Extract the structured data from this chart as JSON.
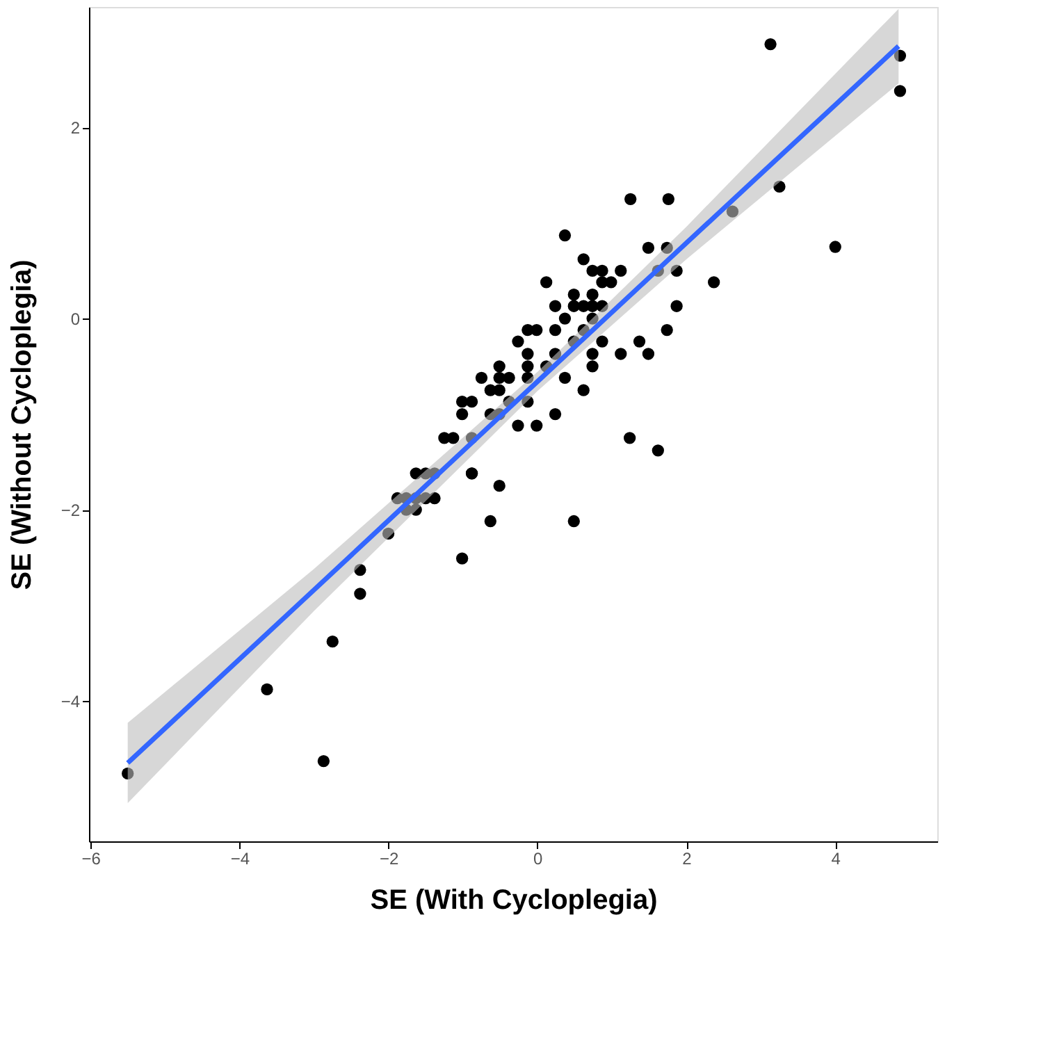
{
  "chart_data": {
    "type": "scatter",
    "xlabel": "SE (With Cycloplegia)",
    "ylabel": "SE (Without Cycloplegia)",
    "xlim": [
      -6.02,
      5.37
    ],
    "ylim": [
      -5.47,
      3.26
    ],
    "xticks": [
      -6,
      -4,
      -2,
      0,
      2,
      4
    ],
    "yticks": [
      -4,
      -2,
      0,
      2
    ],
    "grid": false,
    "series": [
      {
        "marker": "circle",
        "color": "#000000",
        "x": [
          -5.5,
          -2.87,
          -3.63,
          -2.75,
          -2.38,
          -2.38,
          -2.0,
          -1.01,
          -0.63,
          -0.51,
          -0.88,
          -1.88,
          -1.76,
          -1.63,
          -1.5,
          -1.38,
          -1.76,
          -1.63,
          -1.63,
          -1.5,
          -1.38,
          0.37,
          0.62,
          0.12,
          0.74,
          0.87,
          1.12,
          0.87,
          0.99,
          0.49,
          0.74,
          0.24,
          0.49,
          0.62,
          0.74,
          0.87,
          0.37,
          0.74,
          -0.13,
          -0.01,
          0.24,
          0.62,
          -0.26,
          0.49,
          0.87,
          -0.13,
          0.24,
          0.74,
          1.12,
          -0.13,
          0.12,
          0.74,
          -0.51,
          -0.75,
          -0.51,
          -0.38,
          -0.13,
          0.37,
          -0.63,
          -0.51,
          0.62,
          -1.01,
          -0.88,
          -0.38,
          -0.13,
          -1.01,
          -0.63,
          -0.51,
          0.24,
          -0.26,
          -0.01,
          -1.25,
          -1.13,
          -0.88,
          1.24,
          1.62,
          -0.88,
          0.49,
          1.49,
          1.74,
          1.87,
          1.62,
          2.37,
          1.87,
          1.74,
          1.37,
          1.49,
          2.62,
          1.25,
          1.76,
          3.13,
          4.87,
          4.87,
          3.25,
          4.0
        ],
        "values": [
          -4.76,
          -4.63,
          -3.88,
          -3.38,
          -2.88,
          -2.63,
          -2.25,
          -2.51,
          -2.12,
          -1.75,
          -1.62,
          -1.88,
          -1.88,
          -1.88,
          -1.88,
          -1.88,
          -2.0,
          -2.0,
          -1.62,
          -1.62,
          -1.62,
          0.87,
          0.62,
          0.38,
          0.5,
          0.5,
          0.5,
          0.38,
          0.38,
          0.25,
          0.25,
          0.13,
          0.13,
          0.13,
          0.13,
          0.13,
          0.0,
          0.0,
          -0.12,
          -0.12,
          -0.12,
          -0.12,
          -0.24,
          -0.24,
          -0.24,
          -0.37,
          -0.37,
          -0.37,
          -0.37,
          -0.5,
          -0.5,
          -0.5,
          -0.5,
          -0.62,
          -0.62,
          -0.62,
          -0.62,
          -0.62,
          -0.75,
          -0.75,
          -0.75,
          -0.87,
          -0.87,
          -0.87,
          -0.87,
          -1.0,
          -1.0,
          -1.0,
          -1.0,
          -1.12,
          -1.12,
          -1.25,
          -1.25,
          -1.25,
          -1.25,
          -1.38,
          -1.62,
          -2.12,
          0.74,
          0.74,
          0.5,
          0.5,
          0.38,
          0.13,
          -0.12,
          -0.24,
          -0.37,
          1.12,
          1.25,
          1.25,
          2.87,
          2.75,
          2.38,
          1.38,
          0.75
        ]
      },
      {
        "type": "line",
        "marker": "none",
        "line_style": "solid",
        "color": "#3366ff",
        "x": [
          -5.5,
          -3,
          0,
          2,
          4.85
        ],
        "values": [
          -4.65,
          -2.84,
          -0.66,
          0.79,
          2.85
        ],
        "lower": [
          -5.07,
          -3.06,
          -0.76,
          0.62,
          2.46
        ],
        "upper": [
          -4.23,
          -2.62,
          -0.56,
          0.96,
          3.24
        ]
      }
    ]
  }
}
